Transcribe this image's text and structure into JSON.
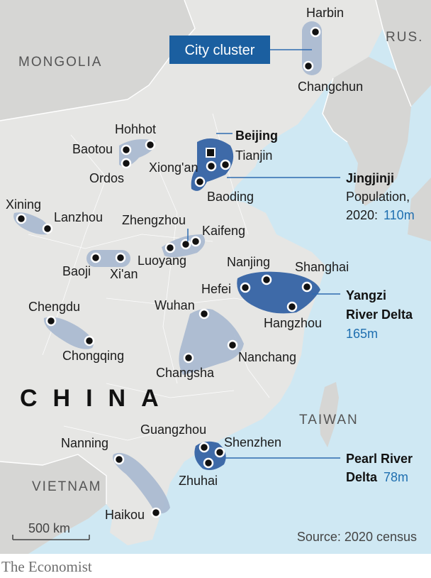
{
  "legend": {
    "label": "City cluster"
  },
  "countries": {
    "mongolia": "MONGOLIA",
    "russia": "RUS.",
    "china": "CHINA",
    "taiwan": "TAIWAN",
    "vietnam": "VIETNAM"
  },
  "cities": {
    "harbin": "Harbin",
    "changchun": "Changchun",
    "hohhot": "Hohhot",
    "baotou": "Baotou",
    "ordos": "Ordos",
    "beijing": "Beijing",
    "tianjin": "Tianjin",
    "xiongan": "Xiong'an",
    "baoding": "Baoding",
    "xining": "Xining",
    "lanzhou": "Lanzhou",
    "zhengzhou": "Zhengzhou",
    "kaifeng": "Kaifeng",
    "luoyang": "Luoyang",
    "baoji": "Baoji",
    "xian": "Xi'an",
    "nanjing": "Nanjing",
    "shanghai": "Shanghai",
    "hefei": "Hefei",
    "hangzhou": "Hangzhou",
    "chengdu": "Chengdu",
    "chongqing": "Chongqing",
    "wuhan": "Wuhan",
    "nanchang": "Nanchang",
    "changsha": "Changsha",
    "guangzhou": "Guangzhou",
    "shenzhen": "Shenzhen",
    "zhuhai": "Zhuhai",
    "nanning": "Nanning",
    "haikou": "Haikou"
  },
  "clusters": {
    "jingjinji": {
      "name": "Jingjinji",
      "pop_prefix_1": "Population,",
      "pop_prefix_2": "2020:",
      "pop_value": "110m"
    },
    "yangzi": {
      "name_1": "Yangzi",
      "name_2": "River Delta",
      "pop_value": "165m"
    },
    "pearl": {
      "name_1": "Pearl River",
      "name_2": "Delta",
      "pop_value": "78m"
    }
  },
  "scale": {
    "label": "500 km"
  },
  "source": "Source: 2020 census",
  "footer": "The Economist",
  "colors": {
    "land": "#e6e6e4",
    "land_other": "#d6d6d4",
    "sea": "#cfe8f3",
    "cluster_light": "#a7b8cf",
    "cluster_dark": "#3e6aa8",
    "legend_bg": "#1b5fa0",
    "brand_red": "#e3120b",
    "pop_blue": "#1f6fb0"
  }
}
